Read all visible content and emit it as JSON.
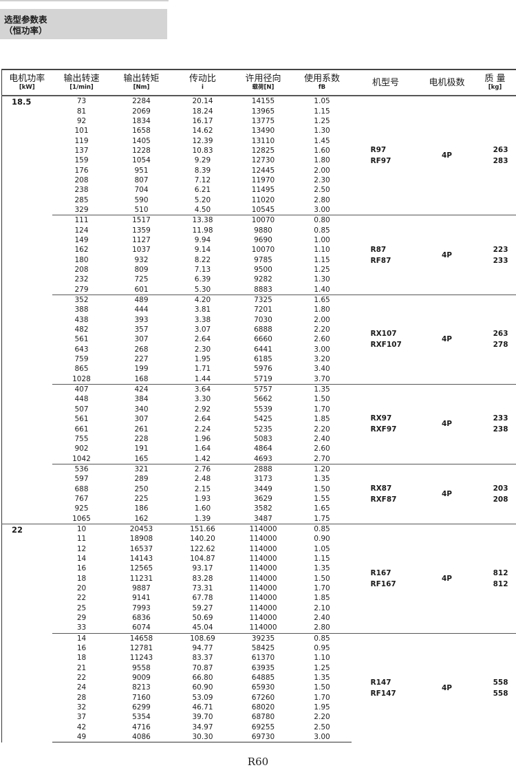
{
  "title": {
    "line1": "选型参数表",
    "line2": "（恒功率）"
  },
  "headers": [
    {
      "cn": "电机功率",
      "unit": "[kW]"
    },
    {
      "cn": "输出转速",
      "unit": "[1/min]"
    },
    {
      "cn": "输出转矩",
      "unit": "[Nm]"
    },
    {
      "cn": "传动比",
      "unit": "i"
    },
    {
      "cn": "许用径向",
      "unit": "载荷[N]"
    },
    {
      "cn": "使用系数",
      "unit": "fB"
    },
    {
      "cn": "机型号",
      "unit": ""
    },
    {
      "cn": "电机极数",
      "unit": ""
    },
    {
      "cn": "质 量",
      "unit": "[kg]"
    }
  ],
  "groups": [
    {
      "power": "18.5",
      "subgroups": [
        {
          "model": [
            "R97",
            "RF97"
          ],
          "poles": "4P",
          "mass": [
            "263",
            "283"
          ],
          "rows": [
            [
              "73",
              "2284",
              "20.14",
              "14155",
              "1.05"
            ],
            [
              "81",
              "2069",
              "18.24",
              "13965",
              "1.15"
            ],
            [
              "92",
              "1834",
              "16.17",
              "13775",
              "1.25"
            ],
            [
              "101",
              "1658",
              "14.62",
              "13490",
              "1.30"
            ],
            [
              "119",
              "1405",
              "12.39",
              "13110",
              "1.45"
            ],
            [
              "137",
              "1228",
              "10.83",
              "12825",
              "1.60"
            ],
            [
              "159",
              "1054",
              "9.29",
              "12730",
              "1.80"
            ],
            [
              "176",
              "951",
              "8.39",
              "12445",
              "2.00"
            ],
            [
              "208",
              "807",
              "7.12",
              "11970",
              "2.30"
            ],
            [
              "238",
              "704",
              "6.21",
              "11495",
              "2.50"
            ],
            [
              "285",
              "590",
              "5.20",
              "11020",
              "2.80"
            ],
            [
              "329",
              "510",
              "4.50",
              "10545",
              "3.00"
            ]
          ]
        },
        {
          "model": [
            "R87",
            "RF87"
          ],
          "poles": "4P",
          "mass": [
            "223",
            "233"
          ],
          "rows": [
            [
              "111",
              "1517",
              "13.38",
              "10070",
              "0.80"
            ],
            [
              "124",
              "1359",
              "11.98",
              "9880",
              "0.85"
            ],
            [
              "149",
              "1127",
              "9.94",
              "9690",
              "1.00"
            ],
            [
              "162",
              "1037",
              "9.14",
              "10070",
              "1.10"
            ],
            [
              "180",
              "932",
              "8.22",
              "9785",
              "1.15"
            ],
            [
              "208",
              "809",
              "7.13",
              "9500",
              "1.25"
            ],
            [
              "232",
              "725",
              "6.39",
              "9282",
              "1.30"
            ],
            [
              "279",
              "601",
              "5.30",
              "8883",
              "1.40"
            ]
          ]
        },
        {
          "model": [
            "RX107",
            "RXF107"
          ],
          "poles": "4P",
          "mass": [
            "263",
            "278"
          ],
          "rows": [
            [
              "352",
              "489",
              "4.20",
              "7325",
              "1.65"
            ],
            [
              "388",
              "444",
              "3.81",
              "7201",
              "1.80"
            ],
            [
              "438",
              "393",
              "3.38",
              "7030",
              "2.00"
            ],
            [
              "482",
              "357",
              "3.07",
              "6888",
              "2.20"
            ],
            [
              "561",
              "307",
              "2.64",
              "6660",
              "2.60"
            ],
            [
              "643",
              "268",
              "2.30",
              "6441",
              "3.00"
            ],
            [
              "759",
              "227",
              "1.95",
              "6185",
              "3.20"
            ],
            [
              "865",
              "199",
              "1.71",
              "5976",
              "3.40"
            ],
            [
              "1028",
              "168",
              "1.44",
              "5719",
              "3.70"
            ]
          ]
        },
        {
          "model": [
            "RX97",
            "RXF97"
          ],
          "poles": "4P",
          "mass": [
            "233",
            "238"
          ],
          "rows": [
            [
              "407",
              "424",
              "3.64",
              "5757",
              "1.35"
            ],
            [
              "448",
              "384",
              "3.30",
              "5662",
              "1.50"
            ],
            [
              "507",
              "340",
              "2.92",
              "5539",
              "1.70"
            ],
            [
              "561",
              "307",
              "2.64",
              "5425",
              "1.85"
            ],
            [
              "661",
              "261",
              "2.24",
              "5235",
              "2.20"
            ],
            [
              "755",
              "228",
              "1.96",
              "5083",
              "2.40"
            ],
            [
              "902",
              "191",
              "1.64",
              "4864",
              "2.60"
            ],
            [
              "1042",
              "165",
              "1.42",
              "4693",
              "2.70"
            ]
          ]
        },
        {
          "model": [
            "RX87",
            "RXF87"
          ],
          "poles": "4P",
          "mass": [
            "203",
            "208"
          ],
          "rows": [
            [
              "536",
              "321",
              "2.76",
              "2888",
              "1.20"
            ],
            [
              "597",
              "289",
              "2.48",
              "3173",
              "1.35"
            ],
            [
              "688",
              "250",
              "2.15",
              "3449",
              "1.50"
            ],
            [
              "767",
              "225",
              "1.93",
              "3629",
              "1.55"
            ],
            [
              "925",
              "186",
              "1.60",
              "3582",
              "1.65"
            ],
            [
              "1065",
              "162",
              "1.39",
              "3487",
              "1.75"
            ]
          ]
        }
      ]
    },
    {
      "power": "22",
      "subgroups": [
        {
          "model": [
            "R167",
            "RF167"
          ],
          "poles": "4P",
          "mass": [
            "812",
            "812"
          ],
          "rows": [
            [
              "10",
              "20453",
              "151.66",
              "114000",
              "0.85"
            ],
            [
              "11",
              "18908",
              "140.20",
              "114000",
              "0.90"
            ],
            [
              "12",
              "16537",
              "122.62",
              "114000",
              "1.05"
            ],
            [
              "14",
              "14143",
              "104.87",
              "114000",
              "1.15"
            ],
            [
              "16",
              "12565",
              "93.17",
              "114000",
              "1.35"
            ],
            [
              "18",
              "11231",
              "83.28",
              "114000",
              "1.50"
            ],
            [
              "20",
              "9887",
              "73.31",
              "114000",
              "1.70"
            ],
            [
              "22",
              "9141",
              "67.78",
              "114000",
              "1.85"
            ],
            [
              "25",
              "7993",
              "59.27",
              "114000",
              "2.10"
            ],
            [
              "29",
              "6836",
              "50.69",
              "114000",
              "2.40"
            ],
            [
              "33",
              "6074",
              "45.04",
              "114000",
              "2.80"
            ]
          ]
        },
        {
          "model": [
            "R147",
            "RF147"
          ],
          "poles": "4P",
          "mass": [
            "558",
            "558"
          ],
          "rows": [
            [
              "14",
              "14658",
              "108.69",
              "39235",
              "0.85"
            ],
            [
              "16",
              "12781",
              "94.77",
              "58425",
              "0.95"
            ],
            [
              "18",
              "11243",
              "83.37",
              "61370",
              "1.10"
            ],
            [
              "21",
              "9558",
              "70.87",
              "63935",
              "1.25"
            ],
            [
              "22",
              "9009",
              "66.80",
              "64885",
              "1.35"
            ],
            [
              "24",
              "8213",
              "60.90",
              "65930",
              "1.50"
            ],
            [
              "28",
              "7160",
              "53.09",
              "67260",
              "1.70"
            ],
            [
              "32",
              "6299",
              "46.71",
              "68020",
              "1.95"
            ],
            [
              "37",
              "5354",
              "39.70",
              "68780",
              "2.20"
            ],
            [
              "42",
              "4716",
              "34.97",
              "69255",
              "2.50"
            ],
            [
              "49",
              "4086",
              "30.30",
              "69730",
              "3.00"
            ]
          ]
        }
      ]
    }
  ],
  "footer": {
    "page": "R60"
  }
}
